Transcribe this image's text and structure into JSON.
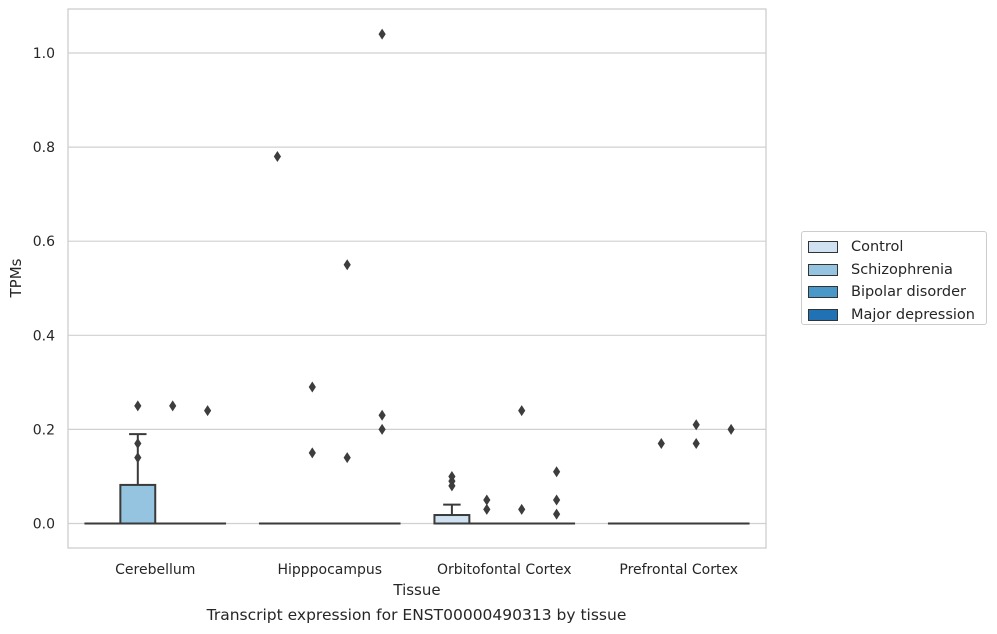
{
  "chart_data": {
    "type": "box",
    "xlabel": "Tissue",
    "ylabel": "TPMs",
    "caption": "Transcript expression for ENST00000490313 by tissue",
    "ylim": [
      -0.05,
      1.09
    ],
    "yticks": [
      0.0,
      0.2,
      0.4,
      0.6,
      0.8,
      1.0
    ],
    "ytick_labels": [
      "0.0",
      "0.2",
      "0.4",
      "0.6",
      "0.8",
      "1.0"
    ],
    "grid": true,
    "legend_position": "right",
    "categories": [
      "Cerebellum",
      "Hipppocampus",
      "Orbitofontal Cortex",
      "Prefrontal Cortex"
    ],
    "series": [
      {
        "name": "Control",
        "color": "#d0e1f2",
        "boxes": [
          {
            "q1": 0,
            "median": 0,
            "q3": 0,
            "whisker_low": 0,
            "whisker_high": 0,
            "outliers": []
          },
          {
            "q1": 0,
            "median": 0,
            "q3": 0,
            "whisker_low": 0,
            "whisker_high": 0,
            "outliers": [
              0.78
            ]
          },
          {
            "q1": 0,
            "median": 0,
            "q3": 0.018,
            "whisker_low": 0,
            "whisker_high": 0.04,
            "outliers": [
              0.1,
              0.09,
              0.08
            ]
          },
          {
            "q1": 0,
            "median": 0,
            "q3": 0,
            "whisker_low": 0,
            "whisker_high": 0,
            "outliers": []
          }
        ]
      },
      {
        "name": "Schizophrenia",
        "color": "#94c4df",
        "boxes": [
          {
            "q1": 0,
            "median": 0,
            "q3": 0.082,
            "whisker_low": 0,
            "whisker_high": 0.19,
            "outliers": [
              0.25,
              0.17,
              0.14
            ]
          },
          {
            "q1": 0,
            "median": 0,
            "q3": 0,
            "whisker_low": 0,
            "whisker_high": 0,
            "outliers": [
              0.29,
              0.15
            ]
          },
          {
            "q1": 0,
            "median": 0,
            "q3": 0,
            "whisker_low": 0,
            "whisker_high": 0,
            "outliers": [
              0.05,
              0.03
            ]
          },
          {
            "q1": 0,
            "median": 0,
            "q3": 0,
            "whisker_low": 0,
            "whisker_high": 0,
            "outliers": [
              0.17
            ]
          }
        ]
      },
      {
        "name": "Bipolar disorder",
        "color": "#4a98c9",
        "boxes": [
          {
            "q1": 0,
            "median": 0,
            "q3": 0,
            "whisker_low": 0,
            "whisker_high": 0,
            "outliers": [
              0.25
            ]
          },
          {
            "q1": 0,
            "median": 0,
            "q3": 0,
            "whisker_low": 0,
            "whisker_high": 0,
            "outliers": [
              0.55,
              0.14
            ]
          },
          {
            "q1": 0,
            "median": 0,
            "q3": 0,
            "whisker_low": 0,
            "whisker_high": 0,
            "outliers": [
              0.24,
              0.03
            ]
          },
          {
            "q1": 0,
            "median": 0,
            "q3": 0,
            "whisker_low": 0,
            "whisker_high": 0,
            "outliers": [
              0.21,
              0.17
            ]
          }
        ]
      },
      {
        "name": "Major depression",
        "color": "#2171b5",
        "boxes": [
          {
            "q1": 0,
            "median": 0,
            "q3": 0,
            "whisker_low": 0,
            "whisker_high": 0,
            "outliers": [
              0.24
            ]
          },
          {
            "q1": 0,
            "median": 0,
            "q3": 0,
            "whisker_low": 0,
            "whisker_high": 0,
            "outliers": [
              1.04,
              0.23,
              0.2
            ]
          },
          {
            "q1": 0,
            "median": 0,
            "q3": 0,
            "whisker_low": 0,
            "whisker_high": 0,
            "outliers": [
              0.11,
              0.05,
              0.02
            ]
          },
          {
            "q1": 0,
            "median": 0,
            "q3": 0,
            "whisker_low": 0,
            "whisker_high": 0,
            "outliers": [
              0.2
            ]
          }
        ]
      }
    ]
  }
}
